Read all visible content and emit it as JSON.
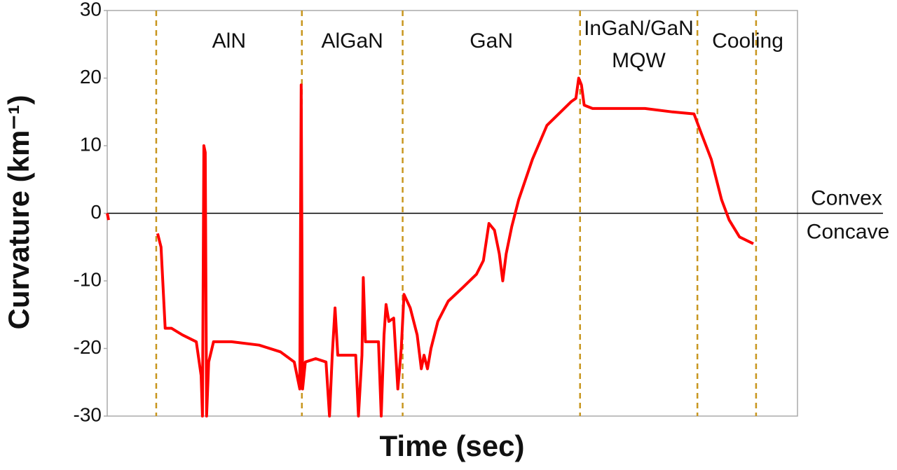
{
  "chart_data": {
    "type": "line",
    "x_label": "Time (sec)",
    "y_label": "Curvature (km⁻¹)",
    "xlim": [
      0,
      100
    ],
    "ylim": [
      -30,
      30
    ],
    "yticks": [
      -30,
      -20,
      -10,
      0,
      10,
      20,
      30
    ],
    "hline": 0,
    "vlines": [
      7.1,
      28.2,
      42.8,
      68.5,
      85.5,
      94.0
    ],
    "vline_color": "#c8961e",
    "regions": [
      [
        "AlN"
      ],
      [
        "AlGaN"
      ],
      [
        "GaN"
      ],
      [
        "InGaN/GaN",
        "MQW"
      ],
      [
        "Cooling"
      ]
    ],
    "annotations": [
      "Convex",
      "Concave"
    ],
    "series": [
      {
        "color": "#ff0000",
        "x": [
          0,
          0.2,
          1.7,
          7.3,
          7.8,
          8.4,
          9.3,
          10.9,
          12.9,
          13.6,
          13.8,
          14.0,
          14.2,
          14.4,
          14.7,
          15.4,
          18.0,
          22.0,
          25.1,
          27.1,
          27.9,
          28.1,
          28.3,
          28.7,
          30.2,
          31.7,
          32.2,
          32.6,
          33.0,
          33.4,
          35.2,
          36.0,
          36.4,
          36.9,
          37.1,
          37.4,
          39.3,
          39.7,
          40.1,
          40.4,
          40.8,
          41.5,
          42.1,
          42.6,
          43.0,
          43.9,
          44.9,
          45.5,
          45.9,
          46.4,
          46.9,
          47.9,
          49.4,
          51.5,
          53.5,
          54.5,
          55.3,
          56.1,
          56.8,
          57.3,
          57.8,
          58.6,
          59.6,
          61.6,
          63.7,
          65.7,
          67.2,
          67.9,
          68.3,
          68.7,
          69.1,
          70.3,
          73.8,
          77.9,
          81.9,
          85.0,
          86.0,
          87.5,
          89.0,
          90.1,
          91.6,
          93.6
        ],
        "values": [
          0,
          -1,
          null,
          -3,
          -5,
          -17,
          -17,
          -18,
          -19,
          -24,
          -30,
          10,
          9,
          -30,
          -22,
          -19,
          -19,
          -19.5,
          -20.5,
          -22,
          -26,
          19,
          -26,
          -22,
          -21.5,
          -22,
          -30,
          -21,
          -14,
          -21,
          -21,
          -21,
          -30,
          -21,
          -9.5,
          -19,
          -19,
          -30,
          -18,
          -13.5,
          -16,
          -15.5,
          -26,
          -20,
          -12,
          -14,
          -18,
          -23,
          -21,
          -23,
          -20,
          -16,
          -13,
          -11,
          -9,
          -7,
          -1.5,
          -2.5,
          -6,
          -10,
          -6,
          -2,
          2,
          8,
          13,
          15,
          16.5,
          17,
          20,
          19,
          16,
          15.5,
          15.5,
          15.5,
          15,
          14.7,
          12,
          8,
          2,
          -1,
          -3.5,
          -4.5
        ]
      }
    ]
  }
}
